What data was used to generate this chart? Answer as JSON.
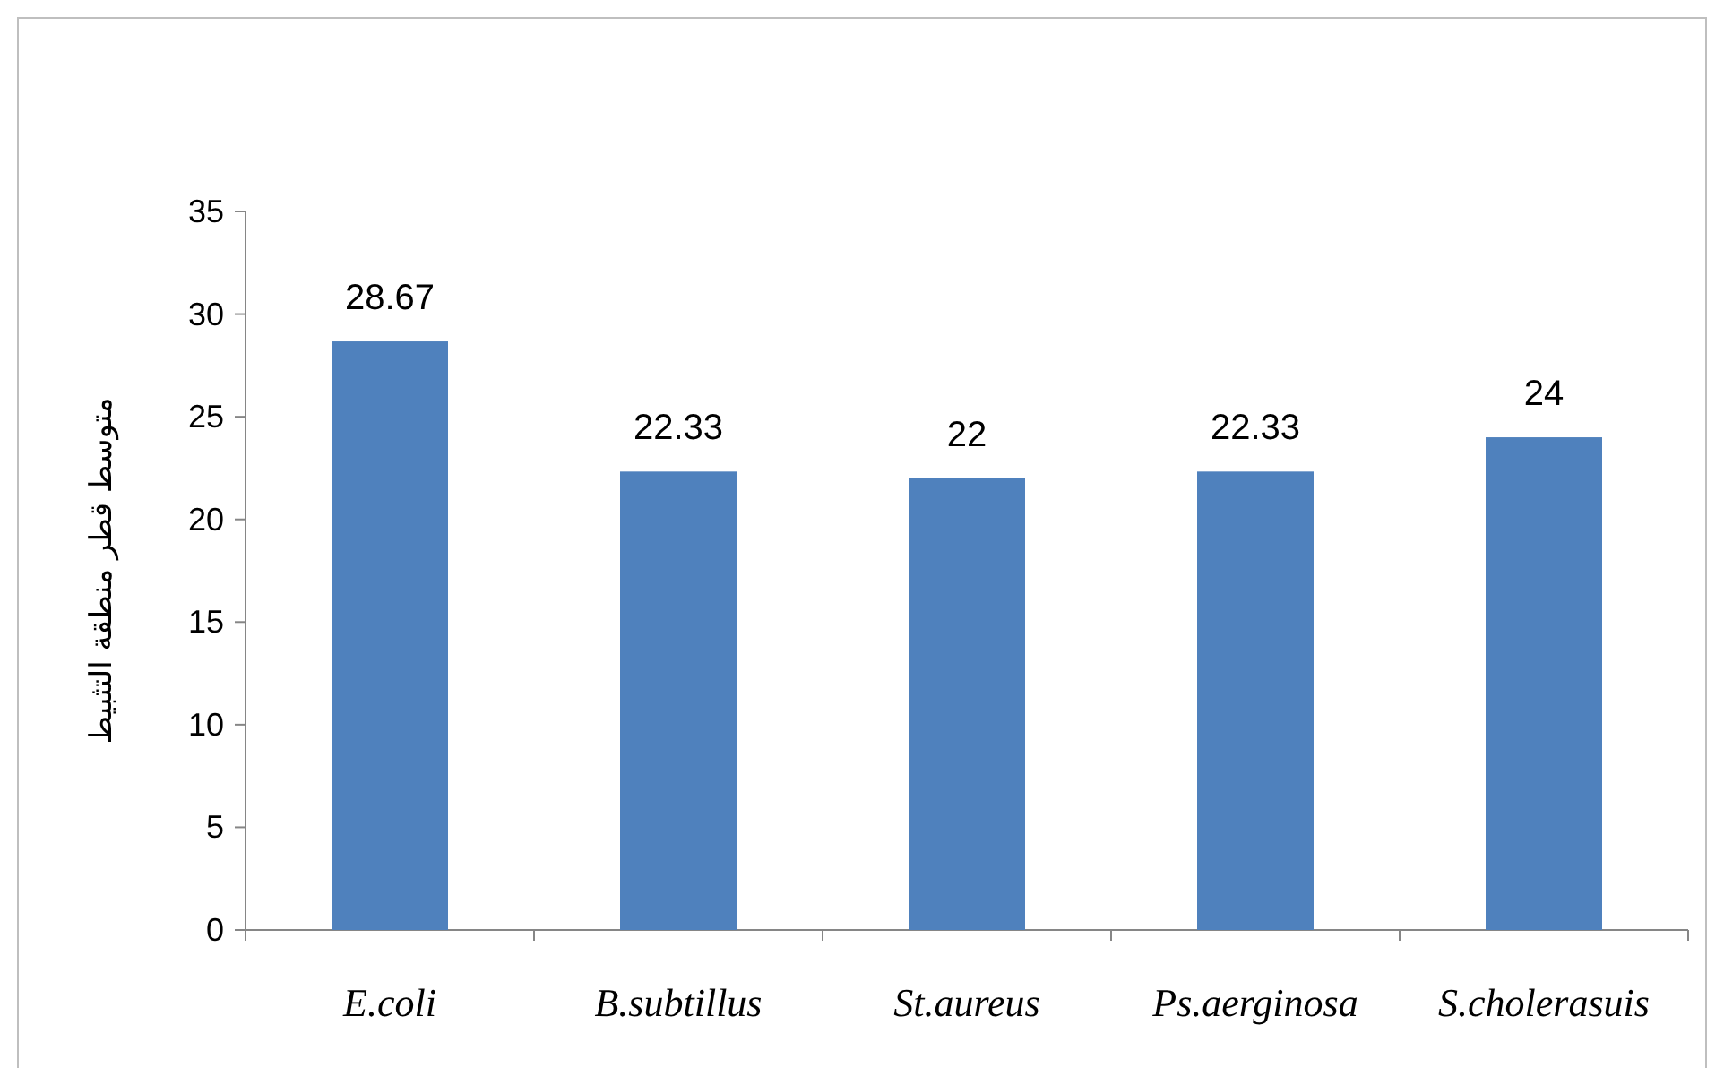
{
  "chart_data": {
    "type": "bar",
    "ylabel": "متوسط قطر منطقة التثبيط",
    "categories": [
      "E.coli",
      "B.subtillus",
      "St.aureus",
      "Ps.aerginosa",
      "S.cholerasuis"
    ],
    "values": [
      28.67,
      22.33,
      22,
      22.33,
      24
    ],
    "color": "#4f81bd",
    "ylim": [
      0,
      35
    ],
    "yticks": [
      0,
      5,
      10,
      15,
      20,
      25,
      30,
      35
    ],
    "grid": false,
    "data_labels": true
  }
}
